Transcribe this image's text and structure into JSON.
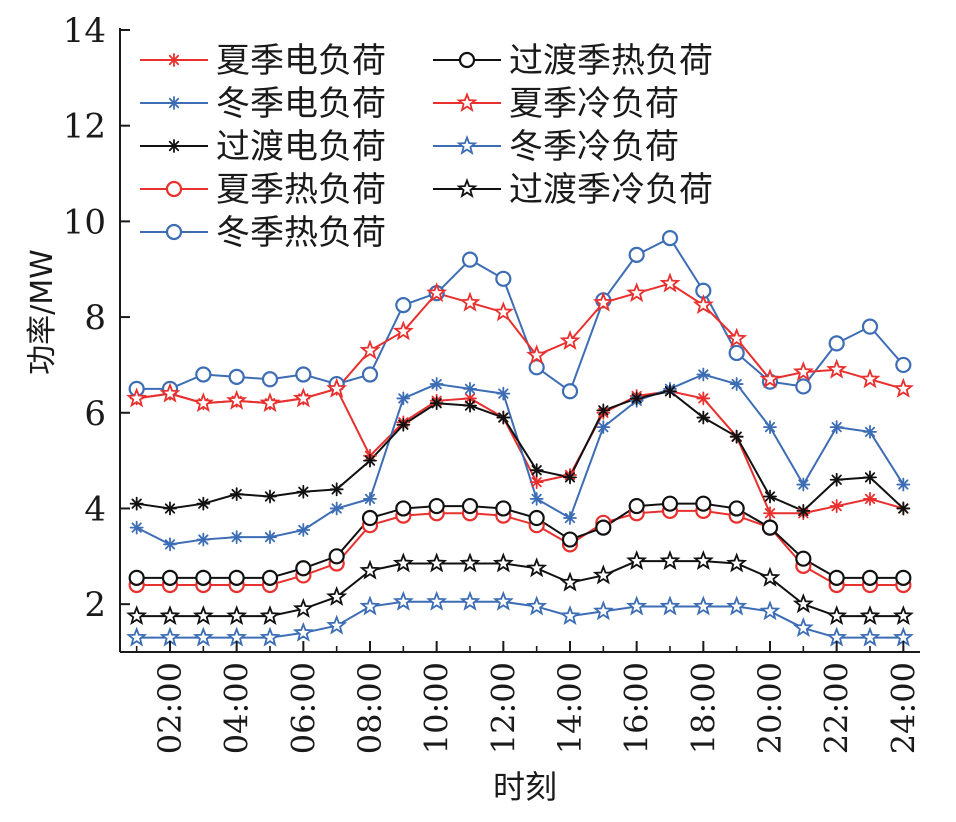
{
  "chart_data": {
    "type": "line",
    "xlabel": "时刻",
    "ylabel": "功率/MW",
    "ylim": [
      1,
      14
    ],
    "yticks": [
      2,
      4,
      6,
      8,
      10,
      12,
      14
    ],
    "x": [
      1,
      2,
      3,
      4,
      5,
      6,
      7,
      8,
      9,
      10,
      11,
      12,
      13,
      14,
      15,
      16,
      17,
      18,
      19,
      20,
      21,
      22,
      23,
      24
    ],
    "xticks": [
      "02:00",
      "04:00",
      "06:00",
      "08:00",
      "10:00",
      "12:00",
      "14:00",
      "16:00",
      "18:00",
      "20:00",
      "22:00",
      "24:00"
    ],
    "xtick_hours": [
      2,
      4,
      6,
      8,
      10,
      12,
      14,
      16,
      18,
      20,
      22,
      24
    ],
    "legend_position": "top-left",
    "grid": false,
    "series": [
      {
        "name": "夏季电负荷",
        "color": "#e8302e",
        "marker": "asterisk",
        "values": [
          6.3,
          6.4,
          6.2,
          6.25,
          6.2,
          6.3,
          6.5,
          5.1,
          5.8,
          6.25,
          6.3,
          5.9,
          4.55,
          4.7,
          6.0,
          6.35,
          6.45,
          6.3,
          5.5,
          3.9,
          3.9,
          4.05,
          4.2,
          4.0
        ]
      },
      {
        "name": "冬季电负荷",
        "color": "#3d6db4",
        "marker": "asterisk",
        "values": [
          3.6,
          3.25,
          3.35,
          3.4,
          3.4,
          3.55,
          4.0,
          4.2,
          6.3,
          6.6,
          6.5,
          6.4,
          4.2,
          3.8,
          5.7,
          6.25,
          6.5,
          6.8,
          6.6,
          5.7,
          4.5,
          5.7,
          5.6,
          4.5
        ]
      },
      {
        "name": "过渡电负荷",
        "color": "#111111",
        "marker": "asterisk",
        "values": [
          4.1,
          4.0,
          4.1,
          4.3,
          4.25,
          4.35,
          4.4,
          5.0,
          5.75,
          6.2,
          6.15,
          5.9,
          4.8,
          4.65,
          6.05,
          6.3,
          6.45,
          5.9,
          5.5,
          4.25,
          3.95,
          4.6,
          4.65,
          4.0
        ]
      },
      {
        "name": "夏季热负荷",
        "color": "#e8302e",
        "marker": "circle",
        "values": [
          2.4,
          2.4,
          2.4,
          2.4,
          2.4,
          2.6,
          2.85,
          3.65,
          3.85,
          3.9,
          3.9,
          3.85,
          3.65,
          3.25,
          3.7,
          3.9,
          3.95,
          3.95,
          3.85,
          3.6,
          2.8,
          2.4,
          2.4,
          2.4
        ]
      },
      {
        "name": "冬季热负荷",
        "color": "#3d6db4",
        "marker": "circle",
        "values": [
          6.5,
          6.5,
          6.8,
          6.75,
          6.7,
          6.8,
          6.6,
          6.8,
          8.25,
          8.5,
          9.2,
          8.8,
          6.95,
          6.45,
          8.35,
          9.3,
          9.65,
          8.55,
          7.25,
          6.65,
          6.55,
          7.45,
          7.8,
          7.0
        ]
      },
      {
        "name": "过渡季热负荷",
        "color": "#111111",
        "marker": "circle",
        "values": [
          2.55,
          2.55,
          2.55,
          2.55,
          2.55,
          2.75,
          3.0,
          3.8,
          4.0,
          4.05,
          4.05,
          4.0,
          3.8,
          3.35,
          3.6,
          4.05,
          4.1,
          4.1,
          4.0,
          3.6,
          2.95,
          2.55,
          2.55,
          2.55
        ]
      },
      {
        "name": "夏季冷负荷",
        "color": "#e8302e",
        "marker": "star",
        "values": [
          6.3,
          6.4,
          6.2,
          6.25,
          6.2,
          6.3,
          6.5,
          7.3,
          7.7,
          8.5,
          8.3,
          8.1,
          7.2,
          7.5,
          8.3,
          8.5,
          8.7,
          8.25,
          7.55,
          6.7,
          6.85,
          6.9,
          6.7,
          6.5
        ]
      },
      {
        "name": "冬季冷负荷",
        "color": "#3d6db4",
        "marker": "star",
        "values": [
          1.3,
          1.3,
          1.3,
          1.3,
          1.3,
          1.4,
          1.55,
          1.95,
          2.05,
          2.05,
          2.05,
          2.05,
          1.95,
          1.75,
          1.85,
          1.95,
          1.95,
          1.95,
          1.95,
          1.85,
          1.5,
          1.3,
          1.3,
          1.3
        ]
      },
      {
        "name": "过渡季冷负荷",
        "color": "#111111",
        "marker": "star",
        "values": [
          1.75,
          1.75,
          1.75,
          1.75,
          1.75,
          1.9,
          2.15,
          2.7,
          2.85,
          2.85,
          2.85,
          2.85,
          2.75,
          2.45,
          2.6,
          2.9,
          2.9,
          2.9,
          2.85,
          2.55,
          2.0,
          1.75,
          1.75,
          1.75
        ]
      }
    ]
  }
}
